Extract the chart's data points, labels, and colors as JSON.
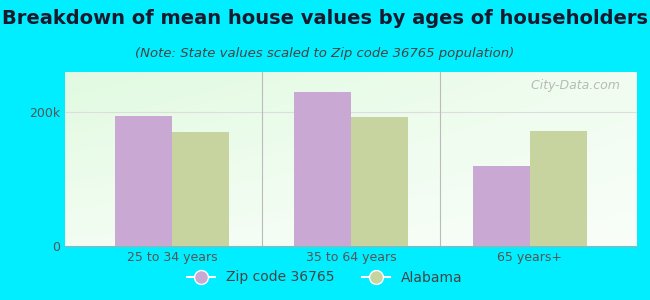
{
  "title": "Breakdown of mean house values by ages of householders",
  "subtitle": "(Note: State values scaled to Zip code 36765 population)",
  "categories": [
    "25 to 34 years",
    "35 to 64 years",
    "65 years+"
  ],
  "zip_values": [
    195000,
    230000,
    120000
  ],
  "state_values": [
    170000,
    193000,
    172000
  ],
  "zip_color": "#c9a8d4",
  "state_color": "#c8d4a0",
  "background_outer": "#00eeff",
  "ylim": [
    0,
    260000
  ],
  "ytick_labels": [
    "0",
    "200k"
  ],
  "bar_width": 0.32,
  "legend_labels": [
    "Zip code 36765",
    "Alabama"
  ],
  "watermark": "  City-Data.com",
  "title_fontsize": 14,
  "subtitle_fontsize": 9.5,
  "tick_fontsize": 9,
  "legend_fontsize": 10
}
